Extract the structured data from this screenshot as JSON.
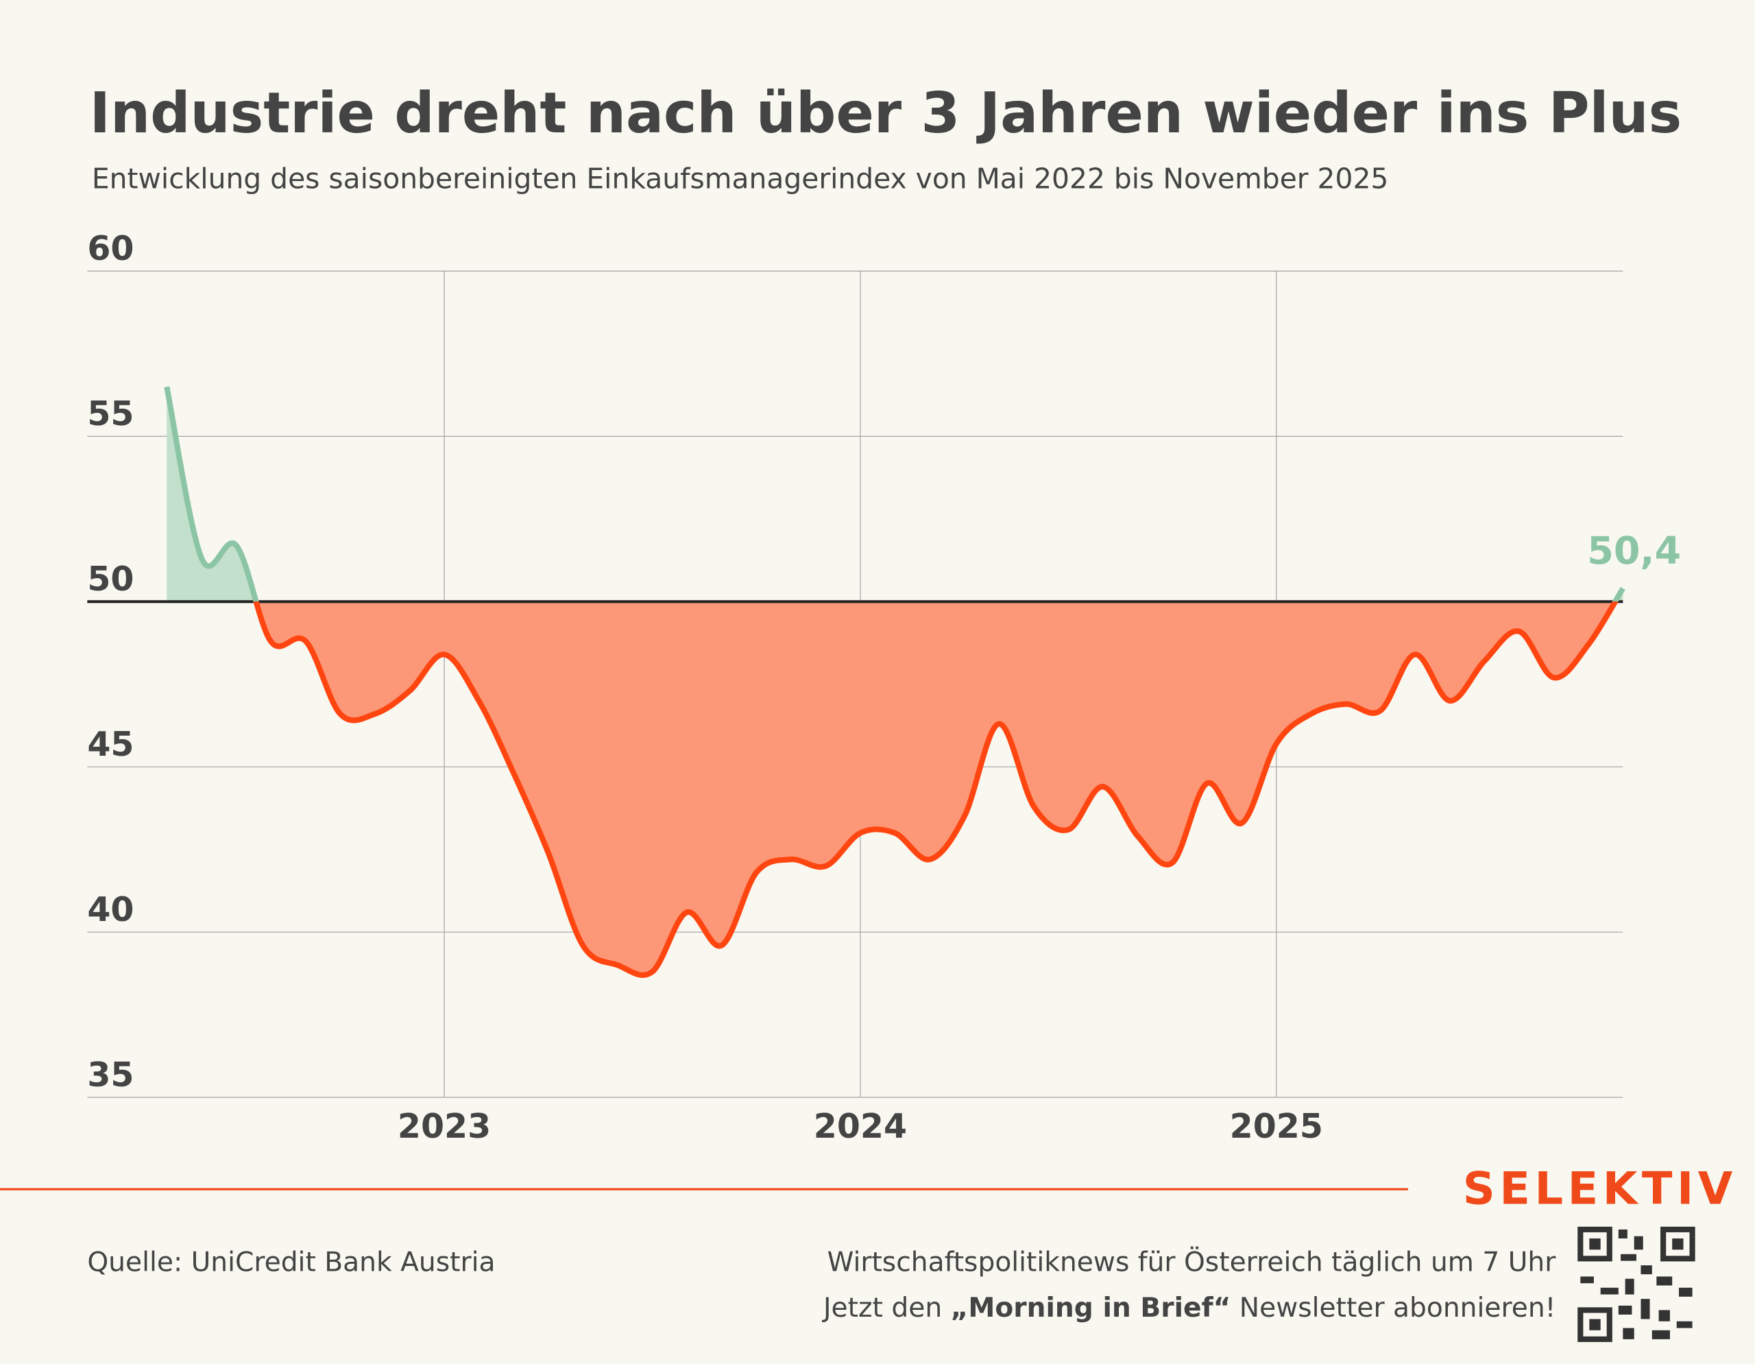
{
  "chart_data": {
    "type": "line",
    "title": "Industrie dreht nach über 3 Jahren wieder ins Plus",
    "subtitle": "Entwicklung des saisonbereinigten Einkaufsmanagerindex von Mai 2022 bis November 2025",
    "x": [
      2022.333,
      2022.417,
      2022.5,
      2022.583,
      2022.667,
      2022.75,
      2022.833,
      2022.917,
      2023,
      2023.083,
      2023.167,
      2023.25,
      2023.333,
      2023.417,
      2023.5,
      2023.583,
      2023.667,
      2023.75,
      2023.833,
      2023.917,
      2024,
      2024.083,
      2024.167,
      2024.25,
      2024.333,
      2024.417,
      2024.5,
      2024.583,
      2024.667,
      2024.75,
      2024.833,
      2024.917,
      2025,
      2025.083,
      2025.167,
      2025.25,
      2025.333,
      2025.417,
      2025.5,
      2025.583,
      2025.667,
      2025.75,
      2025.833
    ],
    "values": [
      56.5,
      51.3,
      51.7,
      48.8,
      48.8,
      46.6,
      46.6,
      47.3,
      48.4,
      47.0,
      44.8,
      42.4,
      39.6,
      39.0,
      38.8,
      40.6,
      39.6,
      41.8,
      42.2,
      42.0,
      43.0,
      43.0,
      42.2,
      43.5,
      46.3,
      43.8,
      43.1,
      44.4,
      42.9,
      42.1,
      44.5,
      43.3,
      45.7,
      46.6,
      46.9,
      46.7,
      48.4,
      47.0,
      48.2,
      49.1,
      47.7,
      48.7,
      50.4
    ],
    "value_labels": [
      null,
      null,
      null,
      null,
      null,
      null,
      null,
      null,
      null,
      null,
      null,
      null,
      null,
      null,
      null,
      null,
      null,
      null,
      null,
      null,
      null,
      null,
      null,
      null,
      null,
      null,
      null,
      null,
      null,
      null,
      null,
      null,
      null,
      null,
      null,
      null,
      null,
      null,
      null,
      null,
      null,
      null,
      "50,4"
    ],
    "threshold": 50,
    "color_above": "#8cc5a5",
    "fill_above": "#c3e0cd",
    "color_below": "#ff4510",
    "fill_below": "#fc9878",
    "xlim": [
      2022.333,
      2025.833
    ],
    "xticks": [
      2023,
      2024,
      2025
    ],
    "ylim": [
      35,
      60
    ],
    "yticks": [
      35,
      40,
      45,
      50,
      55,
      60
    ],
    "grid": true
  },
  "footer": {
    "source": "Quelle: UniCredit Bank Austria",
    "brand": "SELEKTIV",
    "line1": "Wirtschaftspolitiknews für Österreich täglich um 7 Uhr",
    "line2_pre": "Jetzt den ",
    "line2_bold": "„Morning in Brief“",
    "line2_post": " Newsletter abonnieren!"
  }
}
